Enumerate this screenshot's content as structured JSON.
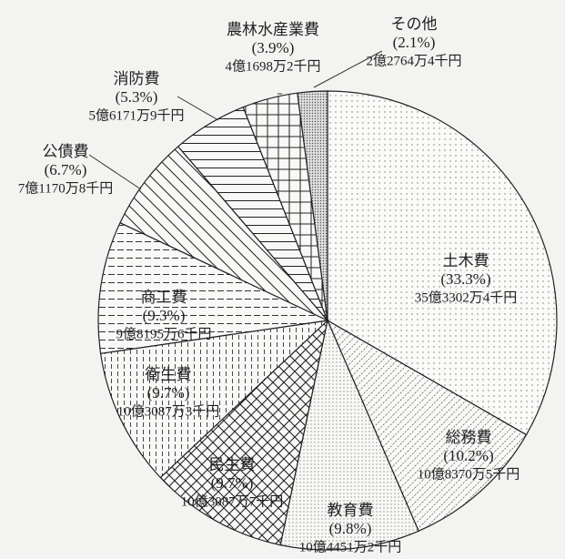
{
  "chart_data": {
    "type": "pie",
    "categories": [
      "土木費",
      "総務費",
      "教育費",
      "民生費",
      "衛生費",
      "商工費",
      "公債費",
      "消防費",
      "農林水産業費",
      "その他"
    ],
    "values": [
      33.3,
      10.2,
      9.8,
      9.7,
      9.7,
      9.3,
      6.7,
      5.3,
      3.9,
      2.1
    ],
    "value_labels": [
      "(33.3%)",
      "(10.2%)",
      "(9.8%)",
      "(9.7%)",
      "(9.7%)",
      "(9.3%)",
      "(6.7%)",
      "(5.3%)",
      "(3.9%)",
      "(2.1%)"
    ],
    "amounts": [
      "35億3302万4千円",
      "10億8370万5千円",
      "10億4451万2千円",
      "10億3087万7千円",
      "10億3087万3千円",
      "9億8195万6千円",
      "7億1170万8千円",
      "5億6171万9千円",
      "4億1698万2千円",
      "2億2764万4千円"
    ],
    "patterns": [
      "sparse-dots",
      "diagonal-dashed",
      "fine-dots",
      "crosshatch",
      "vertical-dashed",
      "horizontal-dashed",
      "diagonal",
      "horizontal",
      "grid",
      "dense-dots"
    ]
  }
}
